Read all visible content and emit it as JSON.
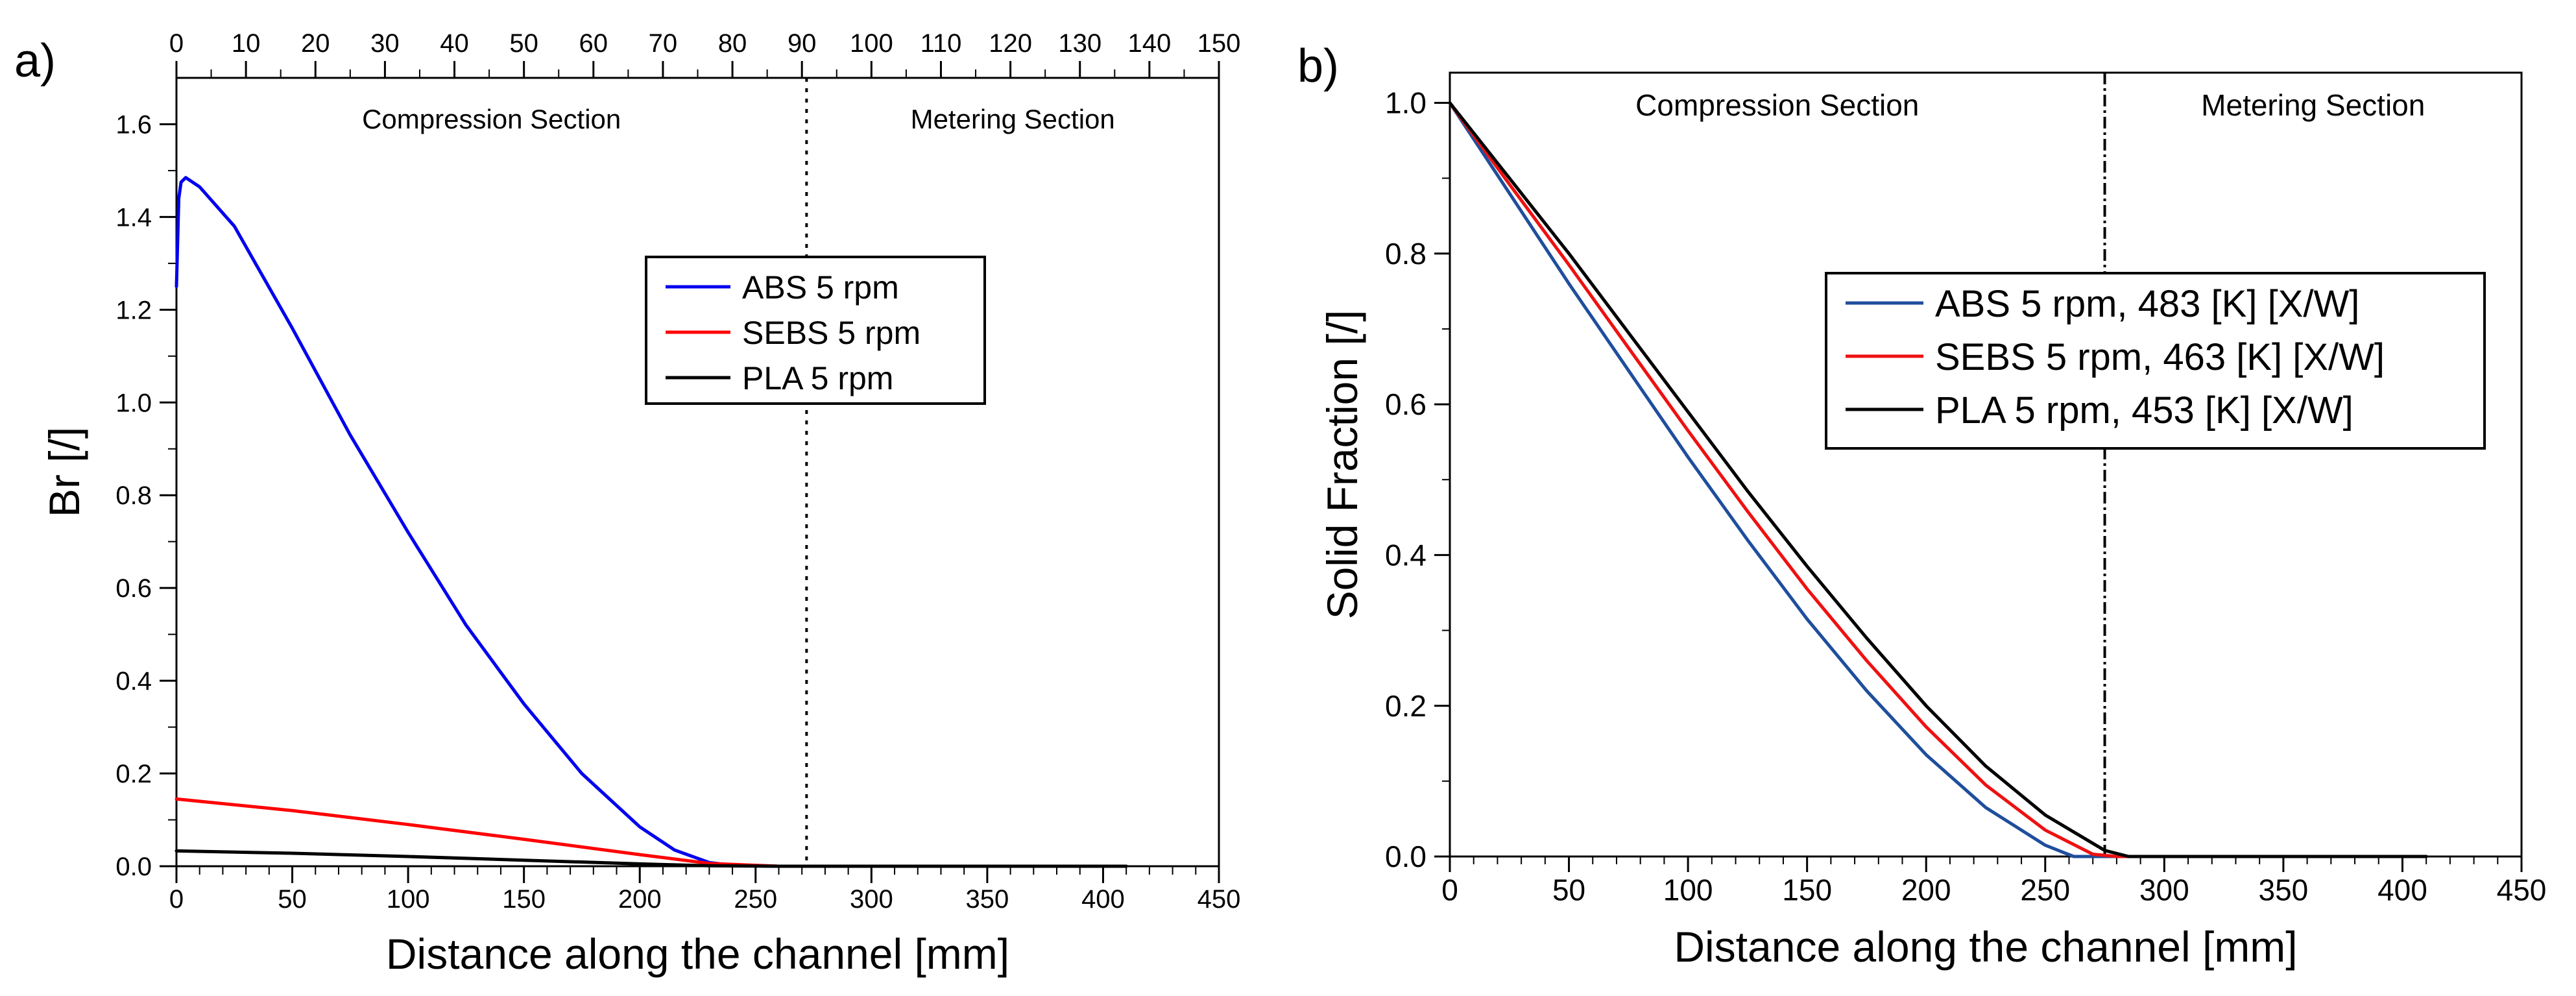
{
  "chart_data": [
    {
      "type": "line",
      "panel_label": "a)",
      "xlabel": "Distance along the channel [mm]",
      "ylabel": "Br [/]",
      "xlim": [
        0,
        450
      ],
      "ylim": [
        0,
        1.7
      ],
      "x_ticks": [
        0,
        50,
        100,
        150,
        200,
        250,
        300,
        350,
        400,
        450
      ],
      "y_ticks": [
        0.0,
        0.2,
        0.4,
        0.6,
        0.8,
        1.0,
        1.2,
        1.4,
        1.6
      ],
      "y_tick_labels": [
        "0.0",
        "0.2",
        "0.4",
        "0.6",
        "0.8",
        "1.0",
        "1.2",
        "1.4",
        "1.6"
      ],
      "top_axis": {
        "label": "",
        "range": [
          0,
          150
        ],
        "ticks": [
          0,
          10,
          20,
          30,
          40,
          50,
          60,
          70,
          80,
          90,
          100,
          110,
          120,
          130,
          140,
          150
        ]
      },
      "sections": [
        {
          "name": "Compression Section",
          "from": 0,
          "to": 272
        },
        {
          "name": "Metering Section",
          "from": 272,
          "to": 450
        }
      ],
      "divider_x": 272,
      "legend_position": "upper-middle",
      "series": [
        {
          "name": "ABS 5 rpm",
          "color": "#0000ee",
          "x": [
            0,
            1,
            2,
            4,
            10,
            25,
            50,
            75,
            100,
            125,
            150,
            175,
            200,
            215,
            230,
            240,
            260,
            300,
            350,
            410
          ],
          "y": [
            1.25,
            1.44,
            1.475,
            1.485,
            1.465,
            1.38,
            1.16,
            0.93,
            0.72,
            0.52,
            0.35,
            0.2,
            0.085,
            0.035,
            0.008,
            0.002,
            0.0,
            0.0,
            0.0,
            0.0
          ]
        },
        {
          "name": "SEBS 5 rpm",
          "color": "#ff0000",
          "x": [
            0,
            50,
            100,
            150,
            200,
            230,
            260,
            300,
            350,
            410
          ],
          "y": [
            0.145,
            0.12,
            0.09,
            0.058,
            0.025,
            0.006,
            0.0,
            0.0,
            0.0,
            0.0
          ]
        },
        {
          "name": "PLA 5 rpm",
          "color": "#000000",
          "x": [
            0,
            50,
            100,
            150,
            200,
            230,
            260,
            300,
            350,
            410
          ],
          "y": [
            0.033,
            0.028,
            0.021,
            0.013,
            0.005,
            0.001,
            0.0,
            0.0,
            0.0,
            0.0
          ]
        }
      ]
    },
    {
      "type": "line",
      "panel_label": "b)",
      "xlabel": "Distance along the channel [mm]",
      "ylabel": "Solid Fraction [/]",
      "xlim": [
        0,
        450
      ],
      "ylim": [
        0,
        1.04
      ],
      "x_ticks": [
        0,
        50,
        100,
        150,
        200,
        250,
        300,
        350,
        400,
        450
      ],
      "y_ticks": [
        0.0,
        0.2,
        0.4,
        0.6,
        0.8,
        1.0
      ],
      "y_tick_labels": [
        "0.0",
        "0.2",
        "0.4",
        "0.6",
        "0.8",
        "1.0"
      ],
      "sections": [
        {
          "name": "Compression Section",
          "from": 0,
          "to": 275
        },
        {
          "name": "Metering Section",
          "from": 275,
          "to": 450
        }
      ],
      "divider_x": 275,
      "legend_position": "center-right",
      "series": [
        {
          "name": "ABS 5 rpm, 483 [K] [X/W]",
          "color": "#1f4e9c",
          "x": [
            0,
            25,
            50,
            75,
            100,
            125,
            150,
            175,
            200,
            225,
            250,
            262,
            275,
            300,
            350,
            410
          ],
          "y": [
            1.0,
            0.88,
            0.76,
            0.645,
            0.53,
            0.42,
            0.315,
            0.22,
            0.135,
            0.065,
            0.015,
            0.0,
            0.0,
            0.0,
            0.0,
            0.0
          ]
        },
        {
          "name": "SEBS 5 rpm, 463 [K] [X/W]",
          "color": "#ee1111",
          "x": [
            0,
            25,
            50,
            75,
            100,
            125,
            150,
            175,
            200,
            225,
            250,
            270,
            280,
            300,
            350,
            410
          ],
          "y": [
            1.0,
            0.892,
            0.785,
            0.675,
            0.565,
            0.458,
            0.355,
            0.26,
            0.172,
            0.095,
            0.035,
            0.003,
            0.0,
            0.0,
            0.0,
            0.0
          ]
        },
        {
          "name": "PLA 5 rpm, 453 [K] [X/W]",
          "color": "#000000",
          "x": [
            0,
            25,
            50,
            75,
            100,
            125,
            150,
            175,
            200,
            225,
            250,
            275,
            285,
            300,
            350,
            410
          ],
          "y": [
            1.0,
            0.9,
            0.8,
            0.695,
            0.59,
            0.485,
            0.385,
            0.29,
            0.2,
            0.12,
            0.055,
            0.008,
            0.0,
            0.0,
            0.0,
            0.0
          ]
        }
      ]
    }
  ]
}
